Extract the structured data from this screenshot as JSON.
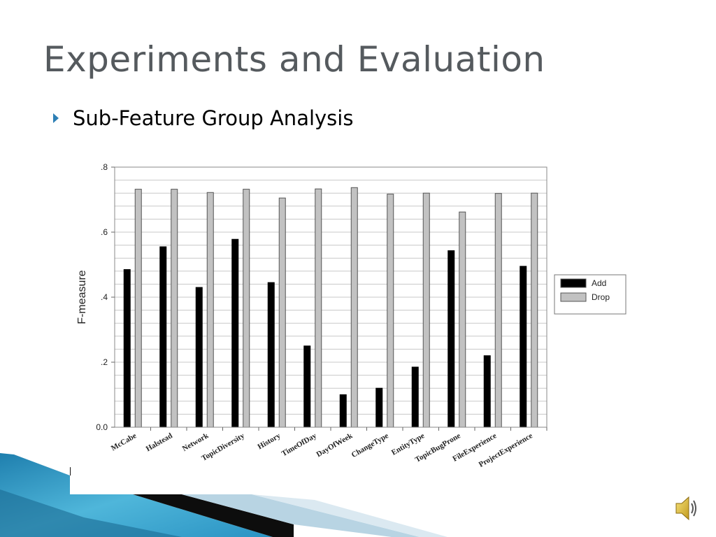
{
  "slide": {
    "title": "Experiments and Evaluation",
    "bullet": "Sub-Feature Group Analysis"
  },
  "icons": {
    "bullet": "triangle-bullet-icon",
    "audio": "speaker-icon"
  },
  "colors": {
    "add": "#000000",
    "drop": "#c2c2c2",
    "title": "#555a5e",
    "bullet": "#2d7fb5",
    "deco": "#2e9bc8"
  },
  "chart_data": {
    "type": "bar",
    "ylabel": "F-measure",
    "xlabel": "",
    "ylim": [
      0,
      0.8
    ],
    "yticks": [
      0,
      0.2,
      0.4,
      0.6,
      0.8
    ],
    "ytick_labels": [
      "0.0",
      ".2",
      ".4",
      ".6",
      ".8"
    ],
    "grid": true,
    "legend_position": "right",
    "categories": [
      "McCabe",
      "Halstead",
      "Network",
      "TopicDiversity",
      "History",
      "TimeOfDay",
      "DayOfWeek",
      "ChangeType",
      "EntityType",
      "TopicBugProne",
      "FileExperience",
      "ProjectExperience"
    ],
    "series": [
      {
        "name": "Add",
        "color": "#000000",
        "values": [
          0.485,
          0.555,
          0.43,
          0.578,
          0.445,
          0.25,
          0.1,
          0.12,
          0.185,
          0.543,
          0.22,
          0.495
        ]
      },
      {
        "name": "Drop",
        "color": "#c2c2c2",
        "values": [
          0.732,
          0.732,
          0.722,
          0.732,
          0.705,
          0.733,
          0.737,
          0.717,
          0.72,
          0.662,
          0.719,
          0.72
        ]
      }
    ]
  }
}
